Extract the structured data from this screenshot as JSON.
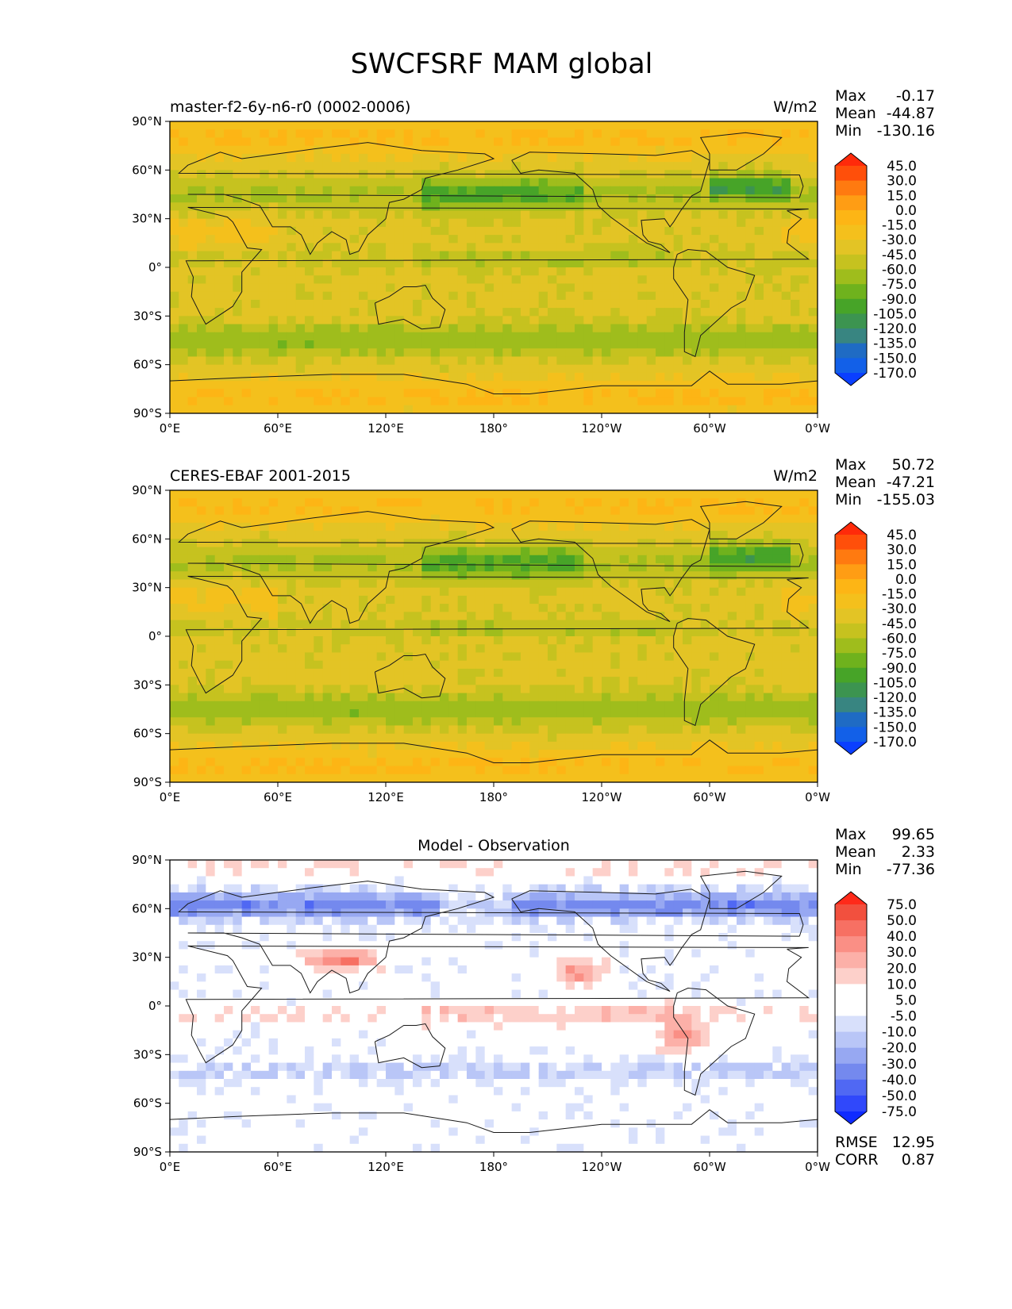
{
  "figure_title": "SWCFSRF MAM global",
  "lon_ticks": [
    "0°E",
    "60°E",
    "120°E",
    "180°",
    "120°W",
    "60°W",
    "0°W"
  ],
  "lat_ticks": [
    "90°N",
    "60°N",
    "30°N",
    "0°",
    "30°S",
    "60°S",
    "90°S"
  ],
  "panels": [
    {
      "left_title": "master-f2-6y-n6-r0 (0002-0006)",
      "center_title": "",
      "units": "W/m2",
      "stats": [
        {
          "label": "Max",
          "value": "-0.17"
        },
        {
          "label": "Mean",
          "value": "-44.87"
        },
        {
          "label": "Min",
          "value": "-130.16"
        }
      ],
      "colorbar_labels": [
        "45.0",
        "30.0",
        "15.0",
        "0.0",
        "-15.0",
        "-30.0",
        "-45.0",
        "-60.0",
        "-75.0",
        "-90.0",
        "-105.0",
        "-120.0",
        "-135.0",
        "-150.0",
        "-170.0"
      ],
      "colorbar_colors": [
        "#ff2a0a",
        "#ff4f0a",
        "#ff7a10",
        "#ff9d14",
        "#fdb515",
        "#f4c01c",
        "#e3c425",
        "#c6c21f",
        "#9fbd1c",
        "#6fb21d",
        "#47a428",
        "#3c9450",
        "#388581",
        "#1f6bc4",
        "#1260e8",
        "#0a3fff"
      ],
      "regrid_seed": 11
    },
    {
      "left_title": "CERES-EBAF 2001-2015",
      "center_title": "",
      "units": "W/m2",
      "stats": [
        {
          "label": "Max",
          "value": "50.72"
        },
        {
          "label": "Mean",
          "value": "-47.21"
        },
        {
          "label": "Min",
          "value": "-155.03"
        }
      ],
      "colorbar_labels": [
        "45.0",
        "30.0",
        "15.0",
        "0.0",
        "-15.0",
        "-30.0",
        "-45.0",
        "-60.0",
        "-75.0",
        "-90.0",
        "-105.0",
        "-120.0",
        "-135.0",
        "-150.0",
        "-170.0"
      ],
      "colorbar_colors": [
        "#ff2a0a",
        "#ff4f0a",
        "#ff7a10",
        "#ff9d14",
        "#fdb515",
        "#f4c01c",
        "#e3c425",
        "#c6c21f",
        "#9fbd1c",
        "#6fb21d",
        "#47a428",
        "#3c9450",
        "#388581",
        "#1f6bc4",
        "#1260e8",
        "#0a3fff"
      ],
      "regrid_seed": 23
    },
    {
      "left_title": "",
      "center_title": "Model - Observation",
      "units": "",
      "stats": [
        {
          "label": "Max",
          "value": "99.65"
        },
        {
          "label": "Mean",
          "value": "2.33"
        },
        {
          "label": "Min",
          "value": "-77.36"
        }
      ],
      "colorbar_labels": [
        "75.0",
        "50.0",
        "40.0",
        "30.0",
        "20.0",
        "10.0",
        "5.0",
        "-5.0",
        "-10.0",
        "-20.0",
        "-30.0",
        "-40.0",
        "-50.0",
        "-75.0"
      ],
      "colorbar_colors": [
        "#ff2a1a",
        "#f2503e",
        "#f77063",
        "#fa8f85",
        "#fcb0a8",
        "#fdd0ca",
        "#ffffff",
        "#ffffff",
        "#d8e0fb",
        "#b9c6f7",
        "#97a8f2",
        "#7489ee",
        "#5068f3",
        "#3048fb",
        "#0f2bff"
      ],
      "extra_stats": [
        {
          "label": "RMSE",
          "value": "12.95"
        },
        {
          "label": "CORR",
          "value": "0.87"
        }
      ],
      "regrid_seed": 37
    }
  ]
}
